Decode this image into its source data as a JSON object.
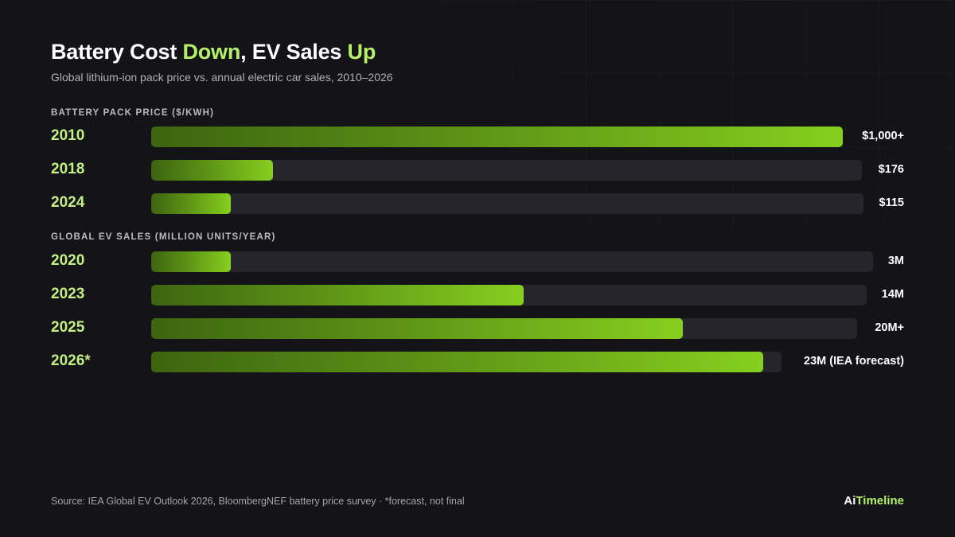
{
  "title": {
    "part1": "Battery Cost ",
    "highlight1": "Down",
    "part2": ", EV Sales ",
    "highlight2": "Up"
  },
  "subtitle": "Global lithium-ion pack price vs. annual electric car sales, 2010–2026",
  "colors": {
    "background": "#141317",
    "accent": "#b5f06a",
    "bar_start": "#3d6410",
    "bar_end": "#86cf1f",
    "track": "#26252b"
  },
  "chart_data": [
    {
      "type": "bar",
      "orientation": "horizontal",
      "title": "BATTERY PACK PRICE ($/KWH)",
      "categories": [
        "2010",
        "2018",
        "2024"
      ],
      "values": [
        1000,
        176,
        115
      ],
      "value_labels": [
        "$1,000+",
        "$176",
        "$115"
      ],
      "xlim": [
        0,
        1000
      ]
    },
    {
      "type": "bar",
      "orientation": "horizontal",
      "title": "GLOBAL EV SALES (MILLION UNITS/YEAR)",
      "categories": [
        "2020",
        "2023",
        "2025",
        "2026*"
      ],
      "values": [
        3,
        14,
        20,
        23
      ],
      "value_labels": [
        "3M",
        "14M",
        "20M+",
        "23M (IEA forecast)"
      ],
      "xlim": [
        0,
        26
      ]
    }
  ],
  "footer": {
    "source": "Source: IEA Global EV Outlook 2026, BloombergNEF battery price survey · *forecast, not final",
    "brand_ai": "Ai",
    "brand_timeline": "Timeline"
  }
}
